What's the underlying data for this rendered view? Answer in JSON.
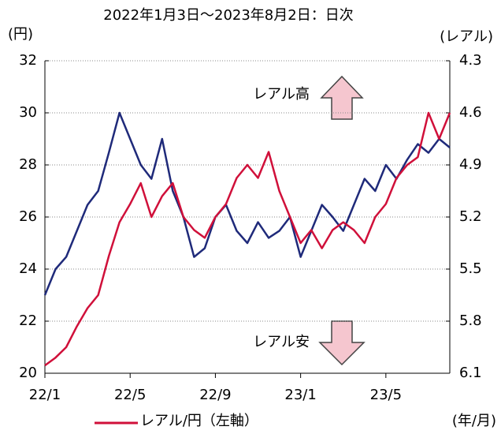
{
  "chart_data": {
    "type": "line",
    "title": "2022年1月3日～2023年8月2日：日次",
    "y_label": "(円)",
    "y2_label": "(レアル)",
    "x_label": "(年/月)",
    "annotations": [
      "レアル高",
      "レアル安"
    ],
    "x": [
      0,
      0.5,
      1,
      1.5,
      2,
      2.5,
      3,
      3.5,
      4,
      4.5,
      5,
      5.5,
      6,
      6.5,
      7,
      7.5,
      8,
      8.5,
      9,
      9.5,
      10,
      10.5,
      11,
      11.5,
      12,
      12.5,
      13,
      13.5,
      14,
      14.5,
      15,
      15.5,
      16,
      16.5,
      17,
      17.5,
      18,
      18.5,
      19
    ],
    "xlim": [
      0,
      19
    ],
    "xticks": [
      {
        "value": 0,
        "label": "22/1"
      },
      {
        "value": 4,
        "label": "22/5"
      },
      {
        "value": 8,
        "label": "22/9"
      },
      {
        "value": 12,
        "label": "23/1"
      },
      {
        "value": 16,
        "label": "23/5"
      }
    ],
    "ylim": [
      20,
      32
    ],
    "yticks": [
      20,
      22,
      24,
      26,
      28,
      30,
      32
    ],
    "y2lim": [
      6.1,
      4.3
    ],
    "y2ticks": [
      6.1,
      5.8,
      5.5,
      5.2,
      4.9,
      4.6,
      4.3
    ],
    "grid": true,
    "series": [
      {
        "name": "レアル/円（左軸）",
        "color": "#d0103a",
        "values": [
          20.3,
          20.6,
          21.0,
          21.8,
          22.5,
          23.0,
          24.5,
          25.8,
          26.5,
          27.3,
          26.0,
          26.8,
          27.3,
          26.0,
          25.5,
          25.2,
          26.0,
          26.5,
          27.5,
          28.0,
          27.5,
          28.5,
          27.0,
          26.0,
          25.0,
          25.5,
          24.8,
          25.5,
          25.8,
          25.5,
          25.0,
          26.0,
          26.5,
          27.5,
          28.0,
          28.3,
          30.0,
          29.0,
          30.0
        ]
      },
      {
        "color": "#1f2a7a",
        "axis": "y2",
        "values": [
          5.65,
          5.5,
          5.43,
          5.28,
          5.13,
          5.05,
          4.83,
          4.6,
          4.75,
          4.9,
          4.98,
          4.75,
          5.05,
          5.2,
          5.43,
          5.38,
          5.2,
          5.13,
          5.28,
          5.35,
          5.23,
          5.32,
          5.28,
          5.2,
          5.43,
          5.28,
          5.13,
          5.2,
          5.28,
          5.13,
          4.98,
          5.05,
          4.9,
          4.98,
          4.87,
          4.78,
          4.83,
          4.75,
          4.8
        ]
      }
    ]
  }
}
